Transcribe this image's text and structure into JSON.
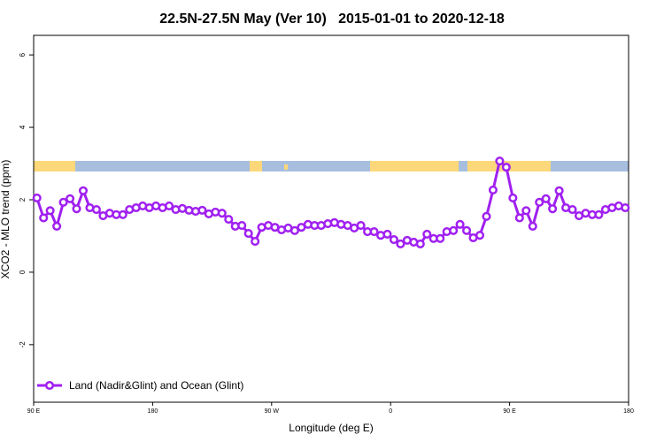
{
  "chart_data": {
    "type": "line",
    "title": "22.5N-27.5N May (Ver 10)   2015-01-01 to 2020-12-18",
    "x_label": "Longitude (deg E)",
    "y_label": "XCO2 - MLO trend (ppm)",
    "xlim": [
      90,
      540
    ],
    "ylim": [
      -3.59,
      6.54
    ],
    "xticks": [
      {
        "value": 90,
        "label": "90 E"
      },
      180,
      {
        "value": 270,
        "label": "90 W"
      },
      {
        "value": 360,
        "label": "0"
      },
      {
        "value": 450,
        "label": "90 E"
      },
      {
        "value": 540,
        "label": "180"
      }
    ],
    "yticks": [
      -2,
      0,
      2,
      4,
      6
    ],
    "grid": false,
    "legend": "bottom-left",
    "x": [
      92.5,
      97.5,
      102.5,
      107.5,
      112.5,
      117.5,
      122.5,
      127.5,
      132.5,
      137.5,
      142.5,
      147.5,
      152.5,
      157.5,
      162.5,
      167.5,
      172.5,
      177.5,
      182.5,
      187.5,
      192.5,
      197.5,
      202.5,
      207.5,
      212.5,
      217.5,
      222.5,
      227.5,
      232.5,
      237.5,
      242.5,
      247.5,
      252.5,
      257.5,
      262.5,
      267.5,
      272.5,
      277.5,
      282.5,
      287.5,
      292.5,
      297.5,
      302.5,
      307.5,
      312.5,
      317.5,
      322.5,
      327.5,
      332.5,
      337.5,
      342.5,
      347.5,
      352.5,
      357.5,
      362.5,
      367.5,
      372.5,
      377.5,
      382.5,
      387.5,
      392.5,
      397.5,
      402.5,
      407.5,
      412.5,
      417.5,
      422.5,
      427.5,
      432.5,
      437.5,
      442.5,
      447.5,
      452.5,
      457.5,
      462.5,
      467.5,
      472.5,
      477.5,
      482.5,
      487.5,
      492.5,
      497.5,
      502.5,
      507.5,
      512.5,
      517.5,
      522.5,
      527.5,
      532.5,
      537.5
    ],
    "series": [
      {
        "name": "Land (Nadir&Glint) and Ocean (Glint)",
        "color": "#a020f0",
        "values": [
          2.05,
          1.5,
          1.7,
          1.27,
          1.93,
          2.03,
          1.75,
          2.25,
          1.78,
          1.73,
          1.56,
          1.63,
          1.59,
          1.59,
          1.73,
          1.78,
          1.83,
          1.78,
          1.83,
          1.78,
          1.83,
          1.73,
          1.76,
          1.71,
          1.68,
          1.71,
          1.61,
          1.66,
          1.63,
          1.46,
          1.27,
          1.29,
          1.07,
          0.85,
          1.24,
          1.29,
          1.24,
          1.17,
          1.22,
          1.15,
          1.24,
          1.32,
          1.29,
          1.29,
          1.34,
          1.37,
          1.32,
          1.29,
          1.22,
          1.29,
          1.12,
          1.12,
          1.02,
          1.05,
          0.9,
          0.78,
          0.88,
          0.83,
          0.78,
          1.05,
          0.93,
          0.93,
          1.12,
          1.15,
          1.32,
          1.15,
          0.95,
          1.02,
          1.54,
          2.27,
          3.07,
          2.9,
          2.05,
          1.5,
          1.7,
          1.27,
          1.93,
          2.03,
          1.75,
          2.25,
          1.78,
          1.73,
          1.56,
          1.63,
          1.59,
          1.59,
          1.73,
          1.78,
          1.83,
          1.78
        ]
      }
    ]
  }
}
